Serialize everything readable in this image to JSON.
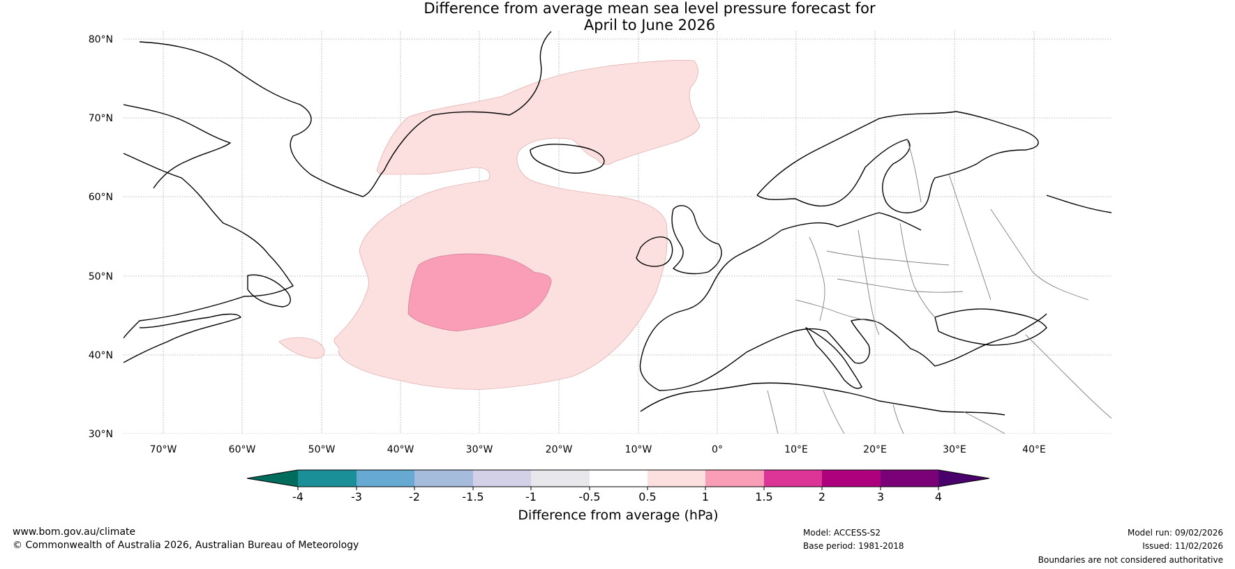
{
  "title": {
    "line1": "Difference from average mean sea level pressure forecast for",
    "line2": "April to June 2026"
  },
  "map": {
    "lat_labels": [
      "80°N",
      "70°N",
      "60°N",
      "50°N",
      "40°N",
      "30°N"
    ],
    "lon_labels": [
      "70°W",
      "60°W",
      "50°W",
      "40°W",
      "30°W",
      "20°W",
      "10°W",
      "0°",
      "10°E",
      "20°E",
      "30°E",
      "40°E"
    ],
    "anomaly_regions": [
      {
        "name": "0.5 to 1 hPa region (North Atlantic)",
        "category": "0.5-1",
        "color": "#fce0df"
      },
      {
        "name": "1 to 1.5 hPa region (central North Atlantic)",
        "category": "1-1.5",
        "color": "#f99eb6"
      }
    ],
    "colors": {
      "coastline": "#000000",
      "borders": "#808080",
      "lakes": "#6e6e6e",
      "gridlines": "#a0a0a0"
    }
  },
  "colorbar": {
    "title": "Difference from average (hPa)",
    "tick_labels": [
      "-4",
      "-3",
      "-2",
      "-1.5",
      "-1",
      "-0.5",
      "0.5",
      "1",
      "1.5",
      "2",
      "3",
      "4"
    ],
    "colors": [
      "#006c5e",
      "#1a8f98",
      "#66a9d2",
      "#a6bcdd",
      "#d2d1e8",
      "#e8e7ec",
      "#ffffff",
      "#fce0df",
      "#f99eb6",
      "#dd3597",
      "#ae017e",
      "#7a0177",
      "#4a006a"
    ]
  },
  "footer": {
    "website": "www.bom.gov.au/climate",
    "copyright": "© Commonwealth of Australia 2026, Australian Bureau of Meteorology",
    "model": "Model: ACCESS-S2",
    "base_period": "Base period: 1981-2018",
    "model_run": "Model run: 09/02/2026",
    "issued": "Issued: 11/02/2026",
    "disclaimer": "Boundaries are not considered authoritative"
  }
}
